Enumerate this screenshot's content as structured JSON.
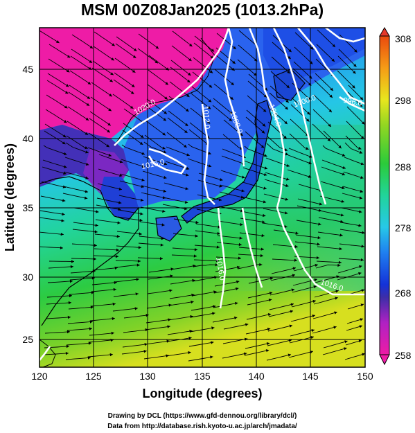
{
  "title": "MSM 00Z08Jan2025 (1013.2hPa)",
  "x_axis": {
    "label": "Longitude (degrees)",
    "range": [
      120,
      150
    ],
    "ticks": [
      "120",
      "125",
      "130",
      "135",
      "140",
      "145",
      "150"
    ]
  },
  "y_axis": {
    "label": "Latitude  (degrees)",
    "range": [
      22.4,
      47.6
    ],
    "ticks": [
      "25",
      "30",
      "35",
      "40",
      "45"
    ]
  },
  "colorbar": {
    "range": [
      258,
      308
    ],
    "ticks": [
      "258",
      "268",
      "278",
      "288",
      "298",
      "308"
    ],
    "colors": [
      "#ee1ca6",
      "#b021c3",
      "#3d2ea8",
      "#1432d8",
      "#1f7ff0",
      "#27c8e8",
      "#21d49a",
      "#2bcb3a",
      "#92d622",
      "#e8e61e",
      "#f59c16",
      "#ea4a0e"
    ]
  },
  "contour_labels": [
    "1020.0",
    "1016.0",
    "1012.0",
    "1008.0",
    "1004.0",
    "1000.0",
    "996.0",
    "1016.0",
    "1016.0"
  ],
  "credits": [
    "Drawing by DCL (https://www.gfd-dennou.org/library/dcl/)",
    "Data from http://database.rish.kyoto-u.ac.jp/arch/jmadata/"
  ]
}
